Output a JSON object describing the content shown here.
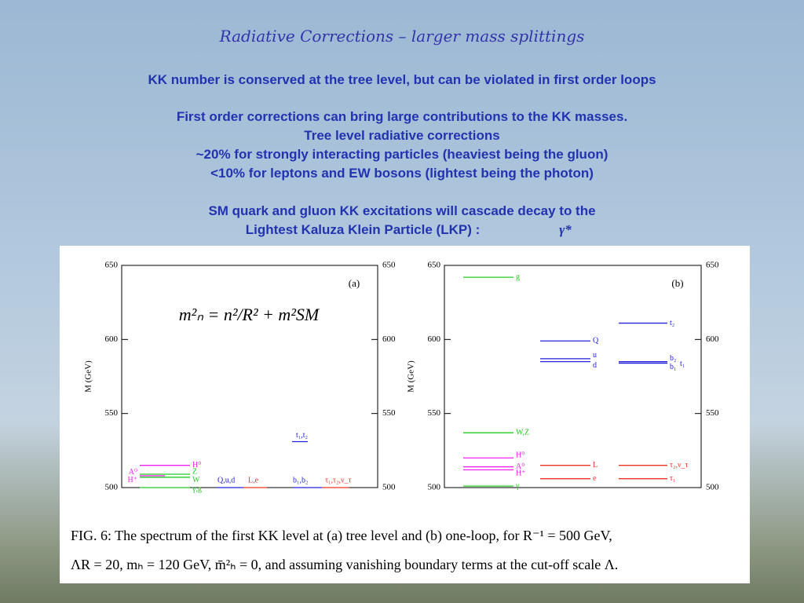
{
  "slide": {
    "title": "Radiative Corrections – larger mass splittings",
    "lines": [
      "KK number is conserved at the tree level, but can be violated in first order loops",
      "First order corrections can bring large contributions to the KK masses.",
      "Tree level radiative corrections",
      "~20% for strongly interacting particles (heaviest being the gluon)",
      "<10% for leptons and EW bosons (lightest being the photon)",
      "SM quark and gluon KK excitations will cascade decay to the",
      "Lightest Kaluza Klein Particle (LKP) :"
    ],
    "lkp_symbol": "γ*"
  },
  "chart_data": [
    {
      "type": "level",
      "panel": "(a)",
      "ylabel": "M (GeV)",
      "ylim": [
        500,
        650
      ],
      "yticks": [
        500,
        550,
        600,
        650
      ],
      "formula": "m²ₙ  =  n²/R²  +  m²SM",
      "levels": [
        {
          "label": "H⁰",
          "value": 515,
          "color": "#ee22ee"
        },
        {
          "label": "Z",
          "value": 509,
          "color": "#22cc22"
        },
        {
          "label": "A⁰",
          "value": 508,
          "color": "#ee22ee"
        },
        {
          "label": "H⁺",
          "value": 507,
          "color": "#ee22ee"
        },
        {
          "label": "W",
          "value": 507,
          "color": "#22cc22"
        },
        {
          "label": "γ,g",
          "value": 500,
          "color": "#22cc22"
        },
        {
          "label": "Q,u,d",
          "value": 500,
          "color": "#2222dd"
        },
        {
          "label": "L,e",
          "value": 500,
          "color": "#ee3322"
        },
        {
          "label": "t₁,t₂",
          "value": 531,
          "color": "#2222dd"
        },
        {
          "label": "b₁,b₂",
          "value": 500,
          "color": "#2222dd"
        },
        {
          "label": "τ₁,τ₂,ν_τ",
          "value": 500,
          "color": "#ee3322"
        }
      ]
    },
    {
      "type": "level",
      "panel": "(b)",
      "ylabel": "M (GeV)",
      "ylim": [
        500,
        650
      ],
      "yticks": [
        500,
        550,
        600,
        650
      ],
      "levels": [
        {
          "label": "g",
          "value": 642,
          "color": "#22cc22"
        },
        {
          "label": "W,Z",
          "value": 537,
          "color": "#22cc22"
        },
        {
          "label": "H⁰",
          "value": 520,
          "color": "#ee22ee"
        },
        {
          "label": "A⁰",
          "value": 514,
          "color": "#ee22ee"
        },
        {
          "label": "H⁺",
          "value": 512,
          "color": "#ee22ee"
        },
        {
          "label": "γ",
          "value": 501,
          "color": "#22cc22"
        },
        {
          "label": "Q",
          "value": 599,
          "color": "#2222dd"
        },
        {
          "label": "u",
          "value": 587,
          "color": "#2222dd"
        },
        {
          "label": "d",
          "value": 585,
          "color": "#2222dd"
        },
        {
          "label": "L",
          "value": 515,
          "color": "#ee3322"
        },
        {
          "label": "e",
          "value": 506,
          "color": "#ee3322"
        },
        {
          "label": "t₂",
          "value": 611,
          "color": "#2222dd"
        },
        {
          "label": "b₂",
          "value": 585,
          "color": "#2222dd"
        },
        {
          "label": "b₁",
          "value": 584,
          "color": "#2222dd"
        },
        {
          "label": "t₁",
          "value": 584,
          "color": "#2222dd"
        },
        {
          "label": "τ₂,ν_τ",
          "value": 515,
          "color": "#ee3322"
        },
        {
          "label": "τ₁",
          "value": 506,
          "color": "#ee3322"
        }
      ]
    }
  ],
  "caption": [
    "FIG. 6:   The spectrum of the first KK level at (a) tree level and (b) one-loop, for R⁻¹ = 500 GeV,",
    "ΛR = 20, mₕ = 120 GeV, m̄²ₕ = 0, and assuming vanishing boundary terms at the cut-off scale Λ."
  ]
}
